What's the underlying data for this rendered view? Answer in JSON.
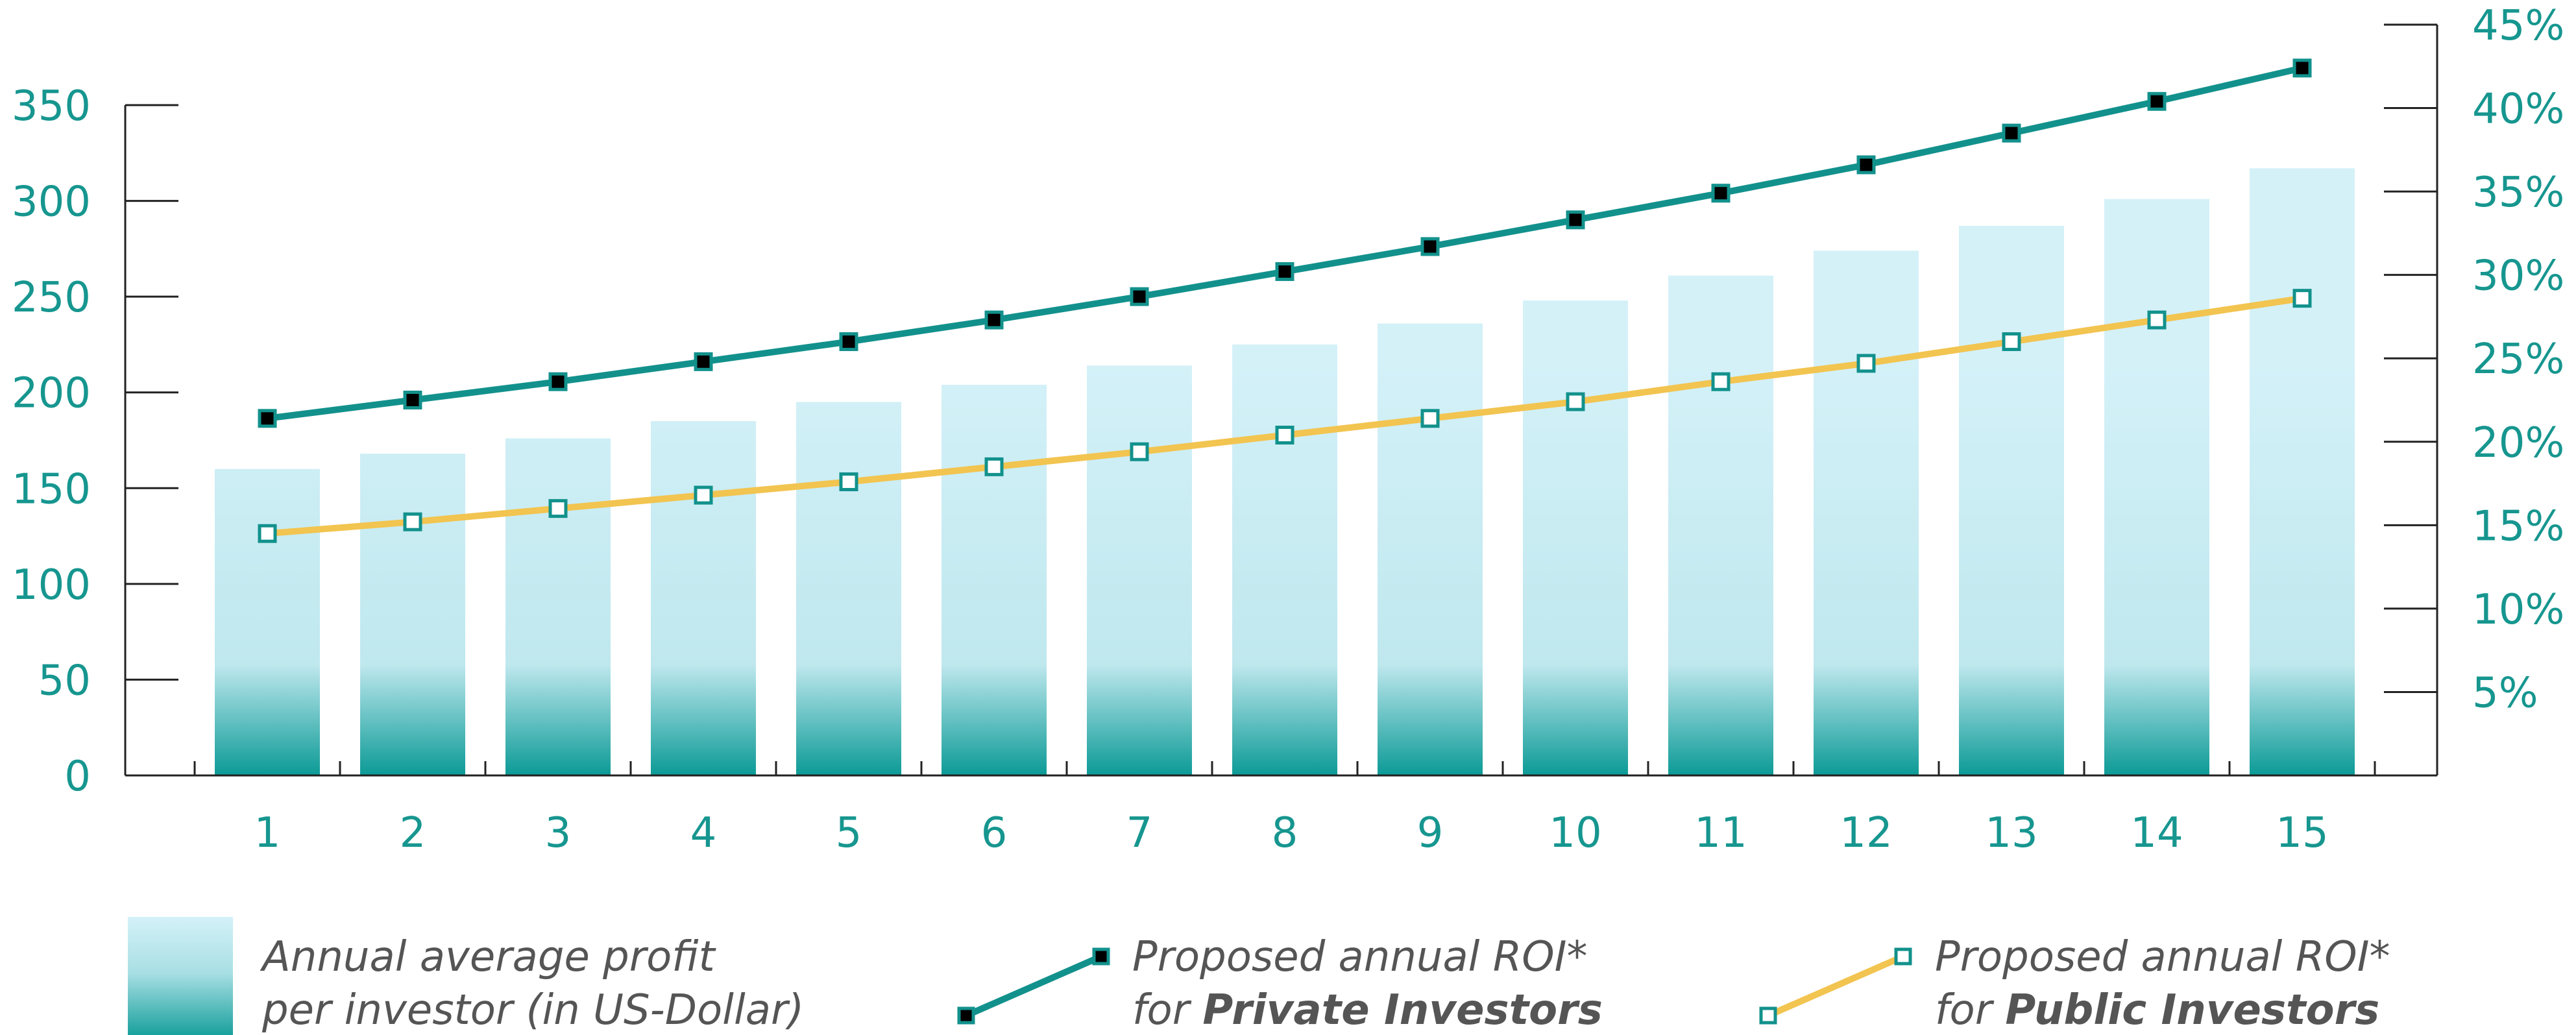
{
  "chart_data": {
    "type": "bar",
    "categories": [
      "1",
      "2",
      "3",
      "4",
      "5",
      "6",
      "7",
      "8",
      "9",
      "10",
      "11",
      "12",
      "13",
      "14",
      "15"
    ],
    "series": [
      {
        "name": "Annual average profit per investor (in US-Dollar)",
        "type": "bar",
        "axis": "left",
        "values": [
          160,
          168,
          176,
          185,
          195,
          204,
          214,
          225,
          236,
          248,
          261,
          274,
          287,
          301,
          317
        ]
      },
      {
        "name": "Proposed annual ROI* for Private Investors",
        "type": "line",
        "axis": "right",
        "values": [
          21.4,
          22.5,
          23.6,
          24.8,
          26.0,
          27.3,
          28.7,
          30.2,
          31.7,
          33.3,
          34.9,
          36.6,
          38.5,
          40.4,
          42.4
        ]
      },
      {
        "name": "Proposed annual ROI* for Public Investors",
        "type": "line",
        "axis": "right",
        "values": [
          14.5,
          15.2,
          16.0,
          16.8,
          17.6,
          18.5,
          19.4,
          20.4,
          21.4,
          22.4,
          23.6,
          24.7,
          26.0,
          27.3,
          28.6
        ]
      }
    ],
    "y_left": {
      "ticks": [
        0,
        50,
        100,
        150,
        200,
        250,
        300,
        350
      ],
      "tick_labels": [
        "0",
        "50",
        "100",
        "150",
        "200",
        "250",
        "300",
        "350"
      ],
      "ylim": [
        0,
        350
      ]
    },
    "y_right": {
      "ticks": [
        5,
        10,
        15,
        20,
        25,
        30,
        35,
        40,
        45
      ],
      "tick_labels": [
        "5%",
        "10%",
        "15%",
        "20%",
        "25%",
        "30%",
        "35%",
        "40%",
        "45%"
      ],
      "ylim": [
        0,
        45
      ]
    },
    "grid": false,
    "legend": {
      "placement": "bottom",
      "bar_label_line1": "Annual average profit",
      "bar_label_line2": "per investor (in US-Dollar)",
      "private_line1": "Proposed annual ROI*",
      "private_prefix": "for ",
      "private_strong": "Private Investors",
      "public_line1": "Proposed annual ROI*",
      "public_prefix": "for ",
      "public_strong": "Public Investors"
    },
    "colors": {
      "bar_top": "#d4f1f8",
      "bar_bottom": "#0b9a96",
      "private_line": "#12918c",
      "private_marker": "#000000",
      "public_line": "#f2c450",
      "public_marker": "#ffffff",
      "axis": "#222222",
      "tick_text": "#16968f",
      "legend_text": "#555555"
    }
  }
}
